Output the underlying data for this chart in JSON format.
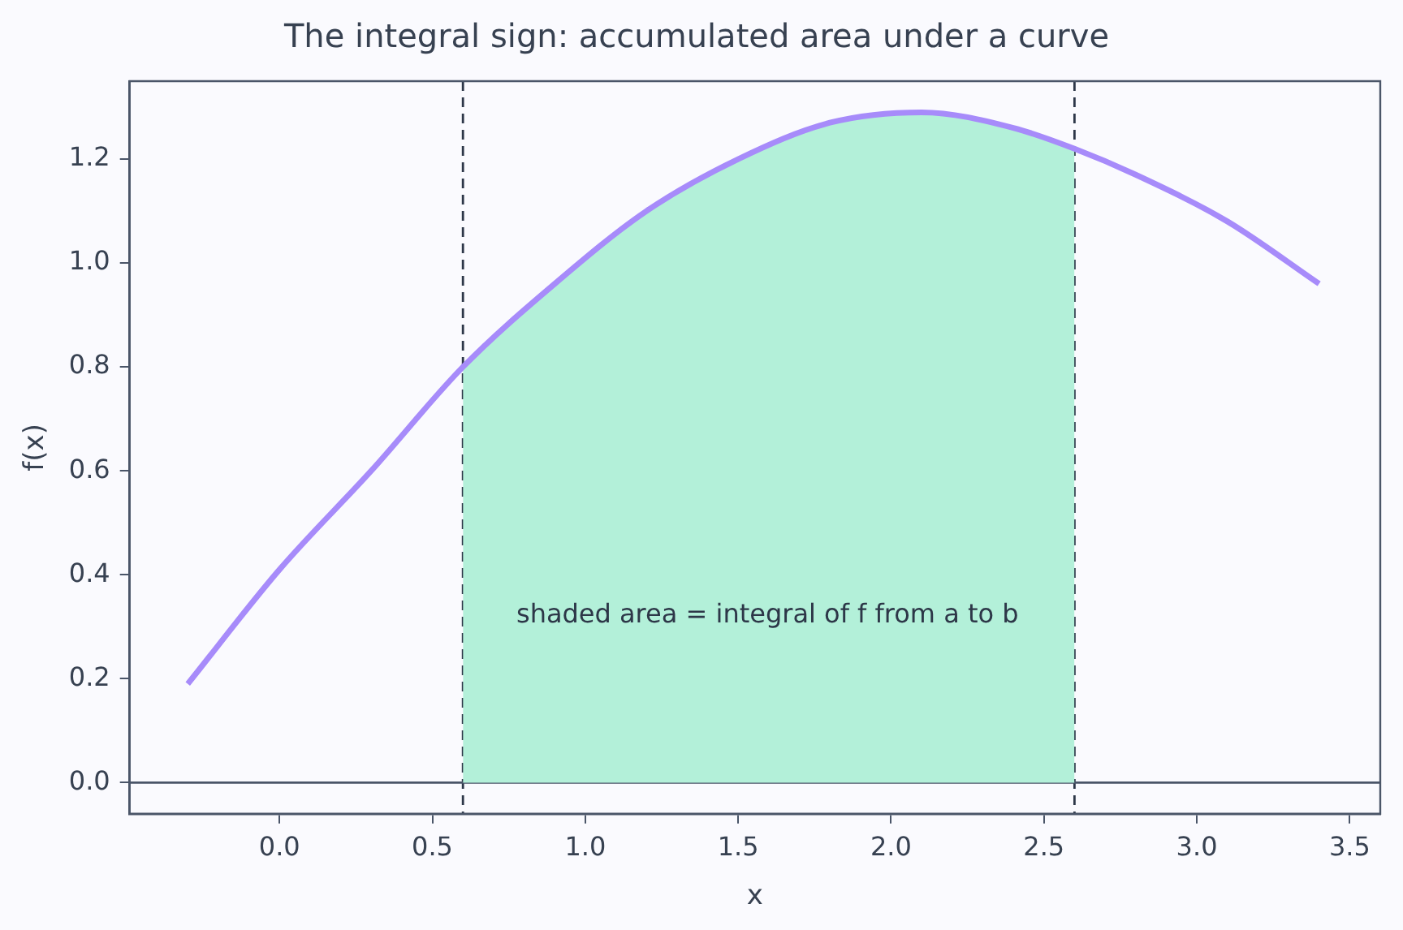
{
  "chart_data": {
    "type": "line",
    "title": "The integral sign: accumulated area under a curve",
    "xlabel": "x",
    "ylabel": "f(x)",
    "x": [
      -0.3,
      0,
      0.3,
      0.6,
      0.9,
      1.2,
      1.5,
      1.8,
      2.1,
      2.4,
      2.6,
      2.8,
      3.1,
      3.4
    ],
    "series": [
      {
        "color": "#a78bfa",
        "values": [
          0.19,
          0.41,
          0.6,
          0.8,
          0.96,
          1.1,
          1.2,
          1.27,
          1.29,
          1.26,
          1.22,
          1.17,
          1.08,
          0.96
        ]
      },
      {
        "type": "area",
        "color": "#b3f0d9",
        "x": [
          0.6,
          0.9,
          1.2,
          1.5,
          1.8,
          2.1,
          2.4,
          2.6
        ],
        "values": [
          0.8,
          0.96,
          1.1,
          1.2,
          1.27,
          1.29,
          1.26,
          1.22
        ]
      }
    ],
    "xlim": [
      -0.49,
      3.6
    ],
    "ylim": [
      -0.06,
      1.35
    ],
    "xticks": [
      {
        "value": 0,
        "label": "0.0"
      },
      0.5,
      {
        "value": 1,
        "label": "1.0"
      },
      1.5,
      {
        "value": 2,
        "label": "2.0"
      },
      2.5,
      {
        "value": 3,
        "label": "3.0"
      },
      3.5
    ],
    "yticks": [
      {
        "value": 0,
        "label": "0.0"
      },
      0.2,
      0.4,
      0.6,
      0.8,
      {
        "value": 1,
        "label": "1.0"
      },
      1.2
    ],
    "ref_lines": [
      {
        "axis": "x",
        "value": 0.6,
        "color": "#2d3748",
        "line_style": "dashed"
      },
      {
        "axis": "x",
        "value": 2.6,
        "color": "#2d3748",
        "line_style": "dashed"
      },
      {
        "axis": "y",
        "value": 0,
        "color": "#4a5568",
        "line_style": "solid"
      }
    ],
    "annotations": [
      "shaded area = integral of f from a to b"
    ],
    "grid": false,
    "legend": false,
    "marker": "none",
    "line_style": "solid"
  }
}
